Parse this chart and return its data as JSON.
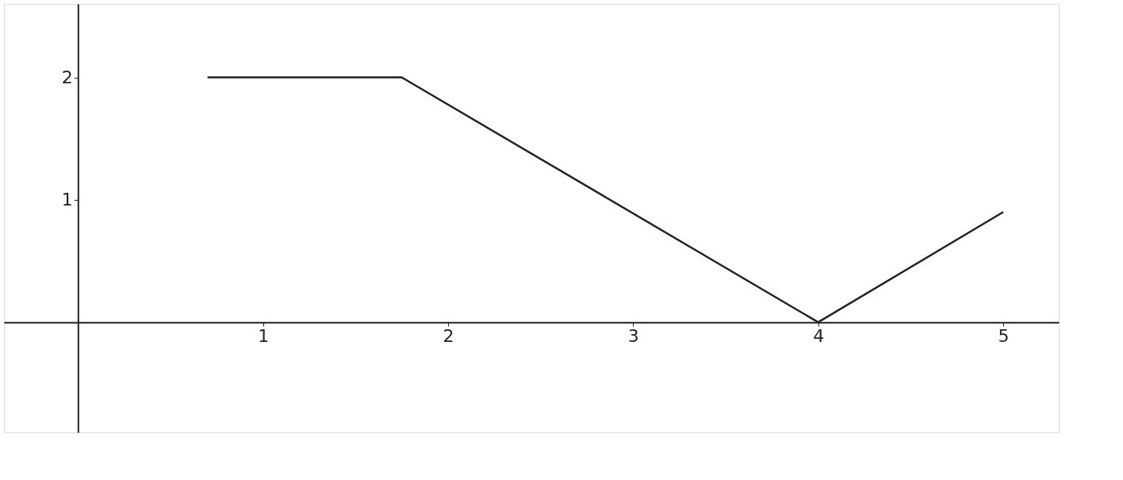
{
  "chart_data": {
    "type": "line",
    "x": [
      0.7,
      1.75,
      4,
      5
    ],
    "series": [
      {
        "color": "#222222",
        "values": [
          2,
          2,
          0,
          0.9
        ]
      }
    ],
    "xlim": [
      -0.4,
      5.3
    ],
    "ylim": [
      -0.9,
      2.6
    ],
    "xticks": [
      1,
      2,
      3,
      4,
      5
    ],
    "yticks": [
      1,
      2
    ],
    "grid": false,
    "legend": false,
    "marker": "none",
    "line_style": "solid"
  }
}
